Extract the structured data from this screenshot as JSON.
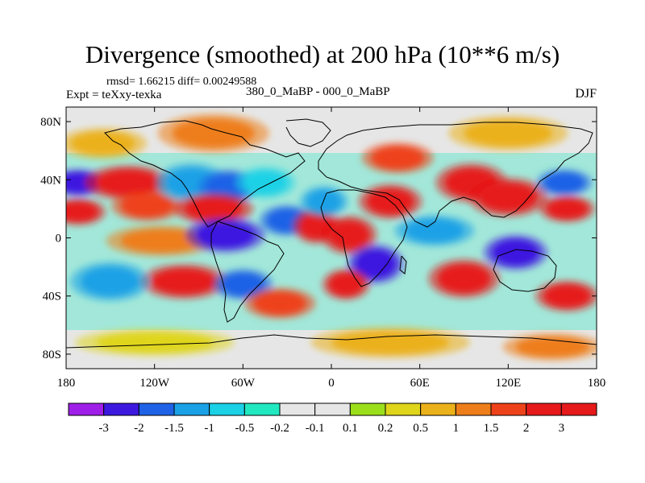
{
  "chart_data": {
    "type": "heatmap",
    "title": "Divergence (smoothed) at 200 hPa (10**6 m/s)",
    "stats_text": "rmsd= 1.66215 diff= 0.00249588",
    "experiment_text": "Expt = teXxy-texka",
    "comparison_text": "380_0_MaBP - 000_0_MaBP",
    "season": "DJF",
    "x_ticks": [
      "180",
      "120W",
      "60W",
      "0",
      "60E",
      "120E",
      "180"
    ],
    "x_tick_values": [
      -180,
      -120,
      -60,
      0,
      60,
      120,
      180
    ],
    "y_ticks": [
      "80N",
      "40N",
      "0",
      "40S",
      "80S"
    ],
    "y_tick_values": [
      80,
      40,
      0,
      -40,
      -80
    ],
    "xlim": [
      -180,
      180
    ],
    "ylim": [
      -90,
      90
    ],
    "colorbar": {
      "labels": [
        "-3",
        "-2",
        "-1.5",
        "-1",
        "-0.5",
        "-0.2",
        "-0.1",
        "0.1",
        "0.2",
        "0.5",
        "1",
        "1.5",
        "2",
        "3"
      ],
      "colors": [
        "#9f1fe8",
        "#3d19e0",
        "#1f62e6",
        "#1aa1e6",
        "#1ad1e6",
        "#21e8c0",
        "#e6e6e6",
        "#e6e6e6",
        "#9bdf1b",
        "#dfd51a",
        "#ebb11a",
        "#ee7e1a",
        "#ee421a",
        "#e61a1a",
        "#e61a1a"
      ]
    },
    "blobs": [
      {
        "lon": -172,
        "lat": 38,
        "rx": 14,
        "ry": 7,
        "value": -3
      },
      {
        "lon": -172,
        "lat": 18,
        "rx": 14,
        "ry": 7,
        "value": 3
      },
      {
        "lon": -138,
        "lat": 38,
        "rx": 22,
        "ry": 9,
        "value": 2
      },
      {
        "lon": -125,
        "lat": 22,
        "rx": 18,
        "ry": 8,
        "value": 1.5
      },
      {
        "lon": -95,
        "lat": 38,
        "rx": 18,
        "ry": 10,
        "value": -1.5
      },
      {
        "lon": -70,
        "lat": 35,
        "rx": 15,
        "ry": 9,
        "value": -2
      },
      {
        "lon": -45,
        "lat": 38,
        "rx": 15,
        "ry": 8,
        "value": -1
      },
      {
        "lon": -80,
        "lat": 20,
        "rx": 20,
        "ry": 8,
        "value": 3
      },
      {
        "lon": -115,
        "lat": -2,
        "rx": 28,
        "ry": 8,
        "value": 1
      },
      {
        "lon": -72,
        "lat": 2,
        "rx": 20,
        "ry": 9,
        "value": -3
      },
      {
        "lon": -30,
        "lat": 12,
        "rx": 14,
        "ry": 8,
        "value": -2
      },
      {
        "lon": -10,
        "lat": 8,
        "rx": 12,
        "ry": 9,
        "value": 3
      },
      {
        "lon": 12,
        "lat": 2,
        "rx": 14,
        "ry": 10,
        "value": 3
      },
      {
        "lon": 30,
        "lat": -18,
        "rx": 14,
        "ry": 10,
        "value": -3
      },
      {
        "lon": 10,
        "lat": -32,
        "rx": 12,
        "ry": 8,
        "value": 3
      },
      {
        "lon": -5,
        "lat": 25,
        "rx": 12,
        "ry": 8,
        "value": -1.5
      },
      {
        "lon": 40,
        "lat": 25,
        "rx": 16,
        "ry": 9,
        "value": 2
      },
      {
        "lon": 45,
        "lat": 55,
        "rx": 18,
        "ry": 8,
        "value": 1.5
      },
      {
        "lon": 70,
        "lat": 5,
        "rx": 20,
        "ry": 8,
        "value": -1.5
      },
      {
        "lon": 95,
        "lat": 38,
        "rx": 18,
        "ry": 10,
        "value": 3
      },
      {
        "lon": 120,
        "lat": 28,
        "rx": 20,
        "ry": 10,
        "value": 2
      },
      {
        "lon": 158,
        "lat": 38,
        "rx": 14,
        "ry": 7,
        "value": -2
      },
      {
        "lon": 160,
        "lat": 20,
        "rx": 14,
        "ry": 7,
        "value": 2
      },
      {
        "lon": 125,
        "lat": -10,
        "rx": 16,
        "ry": 9,
        "value": -3
      },
      {
        "lon": 90,
        "lat": -28,
        "rx": 18,
        "ry": 10,
        "value": 3
      },
      {
        "lon": -100,
        "lat": -30,
        "rx": 22,
        "ry": 9,
        "value": 3
      },
      {
        "lon": -60,
        "lat": -32,
        "rx": 15,
        "ry": 8,
        "value": -2
      },
      {
        "lon": -35,
        "lat": -45,
        "rx": 18,
        "ry": 8,
        "value": 1.5
      },
      {
        "lon": -150,
        "lat": -30,
        "rx": 20,
        "ry": 10,
        "value": -1.5
      },
      {
        "lon": 160,
        "lat": -40,
        "rx": 16,
        "ry": 8,
        "value": 2
      },
      {
        "lon": -155,
        "lat": 65,
        "rx": 22,
        "ry": 8,
        "value": 0.5
      },
      {
        "lon": -80,
        "lat": 72,
        "rx": 28,
        "ry": 10,
        "value": 1
      },
      {
        "lon": 120,
        "lat": 72,
        "rx": 30,
        "ry": 9,
        "value": 0.5
      },
      {
        "lon": 40,
        "lat": -72,
        "rx": 40,
        "ry": 8,
        "value": 0.5
      },
      {
        "lon": -120,
        "lat": -72,
        "rx": 40,
        "ry": 7,
        "value": 0.2
      },
      {
        "lon": 150,
        "lat": -75,
        "rx": 25,
        "ry": 7,
        "value": 1
      }
    ]
  }
}
